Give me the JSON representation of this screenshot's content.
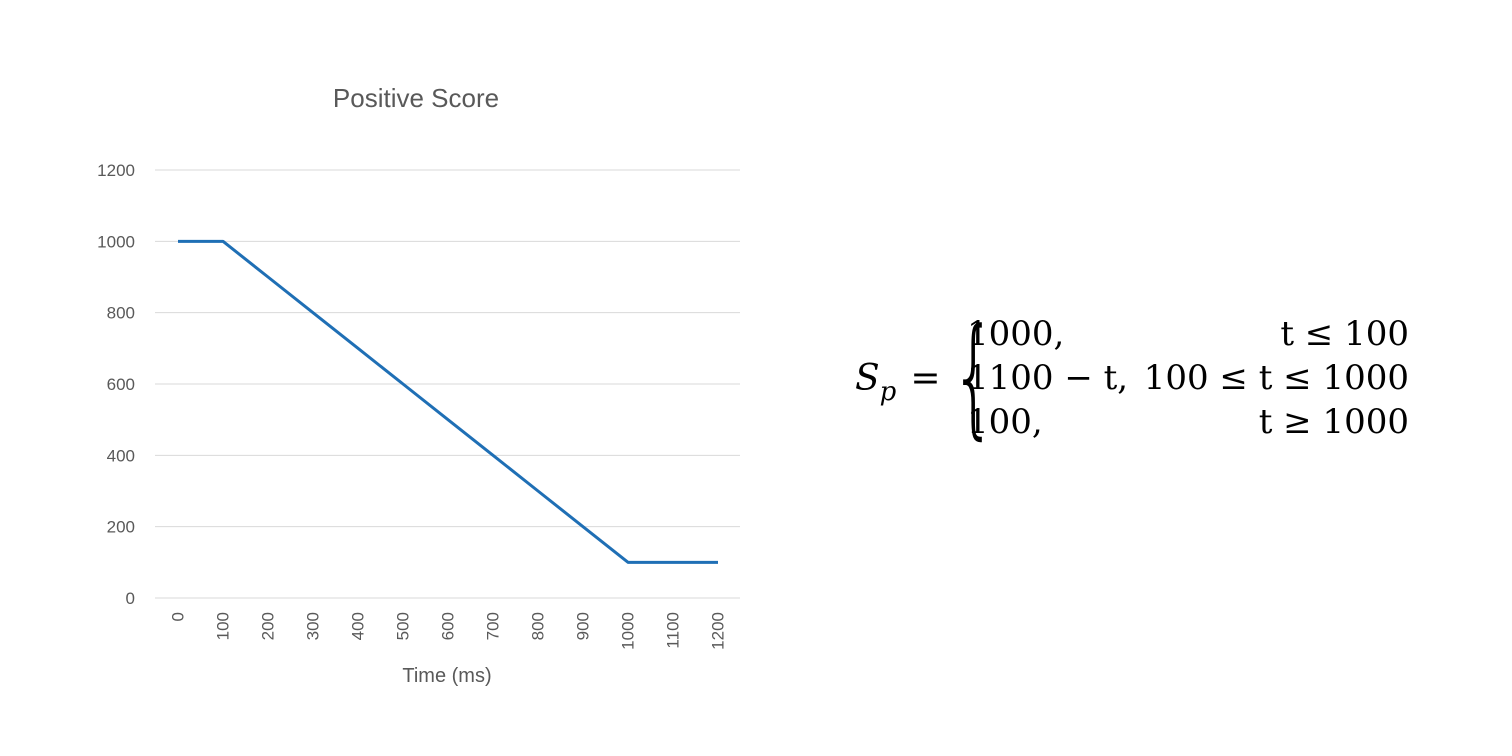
{
  "chart_data": {
    "type": "line",
    "title": "Positive Score",
    "xlabel": "Time (ms)",
    "ylabel": "",
    "categories": [
      "0",
      "100",
      "200",
      "300",
      "400",
      "500",
      "600",
      "700",
      "800",
      "900",
      "1000",
      "1100",
      "1200"
    ],
    "series": [
      {
        "values": [
          1000,
          1000,
          900,
          800,
          700,
          600,
          500,
          400,
          300,
          200,
          100,
          100,
          100
        ],
        "color": "#1f6fb5"
      }
    ],
    "ylim": [
      0,
      1200
    ],
    "yticks": [
      "0",
      "200",
      "400",
      "600",
      "800",
      "1000",
      "1200"
    ],
    "grid": true,
    "legend": "none",
    "x_tick_rotation": "vertical"
  },
  "formula": {
    "lhs_symbol": "S",
    "lhs_subscript": "p",
    "equals": "=",
    "cases": [
      {
        "expr": "1000,",
        "cond": "t ≤ 100"
      },
      {
        "expr": "1100 − t,",
        "cond": "100 ≤ t ≤ 1000"
      },
      {
        "expr": "100,",
        "cond": "t ≥ 1000"
      }
    ]
  }
}
